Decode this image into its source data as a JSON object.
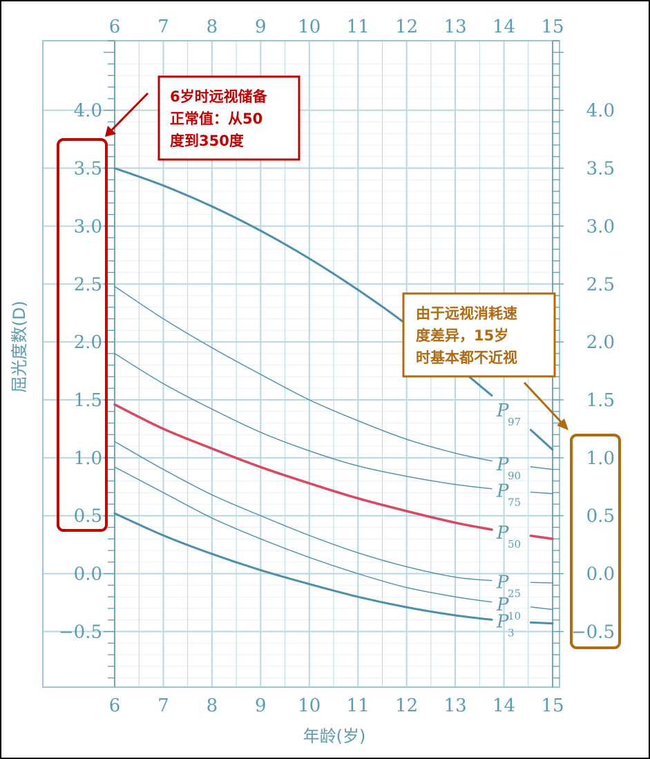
{
  "chart_data": {
    "type": "line",
    "xlabel": "年龄(岁)",
    "ylabel": "屈光度数(D)",
    "x": [
      6,
      7,
      8,
      9,
      10,
      11,
      12,
      13,
      14,
      15
    ],
    "xlim": [
      6,
      15
    ],
    "ylim": [
      -0.98,
      4.6
    ],
    "y_ticks": [
      4.0,
      3.5,
      3.0,
      2.5,
      2.0,
      1.5,
      1.0,
      0.5,
      0.0,
      -0.5
    ],
    "y_tick_labels": [
      "4.0",
      "3.5",
      "3.0",
      "2.5",
      "2.0",
      "1.5",
      "1.0",
      "0.5",
      "0.0",
      "-0.5"
    ],
    "x_tick_labels": [
      "6",
      "7",
      "8",
      "9",
      "10",
      "11",
      "12",
      "13",
      "14",
      "15"
    ],
    "grid": true,
    "series": [
      {
        "name": "P97",
        "label": "P",
        "sub": "97",
        "highlight": false,
        "heavy": true,
        "x": [
          6,
          7,
          8,
          9,
          10,
          11,
          12,
          13,
          14,
          15
        ],
        "values": [
          3.5,
          3.35,
          3.17,
          2.96,
          2.72,
          2.45,
          2.15,
          1.8,
          1.45,
          1.07
        ]
      },
      {
        "name": "P90",
        "label": "P",
        "sub": "90",
        "highlight": false,
        "heavy": false,
        "x": [
          6,
          7,
          8,
          9,
          10,
          11,
          12,
          13,
          14,
          15
        ],
        "values": [
          2.48,
          2.2,
          1.95,
          1.72,
          1.5,
          1.32,
          1.16,
          1.04,
          0.95,
          0.9
        ]
      },
      {
        "name": "P75",
        "label": "P",
        "sub": "75",
        "highlight": false,
        "heavy": false,
        "x": [
          6,
          7,
          8,
          9,
          10,
          11,
          12,
          13,
          14,
          15
        ],
        "values": [
          1.9,
          1.64,
          1.42,
          1.22,
          1.06,
          0.93,
          0.84,
          0.77,
          0.72,
          0.69
        ]
      },
      {
        "name": "P50",
        "label": "P",
        "sub": "50",
        "highlight": true,
        "heavy": true,
        "x": [
          6,
          7,
          8,
          9,
          10,
          11,
          12,
          13,
          14,
          15
        ],
        "values": [
          1.46,
          1.25,
          1.08,
          0.92,
          0.78,
          0.65,
          0.54,
          0.44,
          0.36,
          0.3
        ]
      },
      {
        "name": "P25",
        "label": "P",
        "sub": "25",
        "highlight": false,
        "heavy": false,
        "x": [
          6,
          7,
          8,
          9,
          10,
          11,
          12,
          13,
          14,
          15
        ],
        "values": [
          1.14,
          0.9,
          0.68,
          0.5,
          0.33,
          0.18,
          0.06,
          -0.03,
          -0.07,
          -0.08
        ]
      },
      {
        "name": "P10",
        "label": "P",
        "sub": "10",
        "highlight": false,
        "heavy": false,
        "x": [
          6,
          7,
          8,
          9,
          10,
          11,
          12,
          13,
          14,
          15
        ],
        "values": [
          0.92,
          0.7,
          0.48,
          0.3,
          0.14,
          0.0,
          -0.12,
          -0.2,
          -0.26,
          -0.31
        ]
      },
      {
        "name": "P3",
        "label": "P",
        "sub": "3",
        "highlight": false,
        "heavy": true,
        "x": [
          6,
          7,
          8,
          9,
          10,
          11,
          12,
          13,
          14,
          15
        ],
        "values": [
          0.52,
          0.33,
          0.17,
          0.03,
          -0.09,
          -0.2,
          -0.29,
          -0.36,
          -0.41,
          -0.43
        ]
      }
    ],
    "annotations": [
      {
        "id": "left",
        "lines": [
          "6岁时远视储备",
          "正常值：从50",
          "度到350度"
        ],
        "color": "#c00000"
      },
      {
        "id": "right",
        "lines": [
          "由于远视消耗速",
          "度差异，15岁",
          "时基本都不近视"
        ],
        "color": "#b06a10"
      }
    ]
  },
  "colors": {
    "grid": "#b9d7e1",
    "axis_text": "#5b9db0",
    "curve": "#4c8fa8",
    "curve_highlight": "#d9485f",
    "annot_left": "#c00000",
    "annot_right": "#b06a10"
  }
}
